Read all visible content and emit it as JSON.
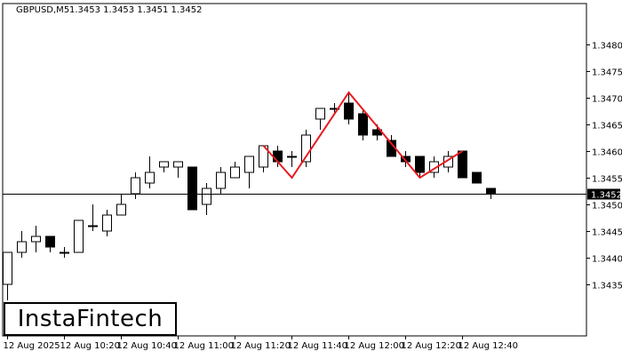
{
  "header": {
    "symbol": "GBPUSD,M5",
    "ohlc": "1.3453 1.3453 1.3451 1.3452"
  },
  "logo": {
    "text": "InstaFintech"
  },
  "current_price_label": "1.3452",
  "colors": {
    "pattern_line": "#e8191e",
    "bull_candle": "#ffffff",
    "bear_candle": "#000000",
    "price_line": "#000000"
  },
  "chart_data": {
    "type": "candlestick",
    "title": "GBPUSD,M5",
    "ylim": [
      1.343,
      1.348
    ],
    "y_ticks": [
      "1.3435",
      "1.3440",
      "1.3445",
      "1.3450",
      "1.3455",
      "1.3460",
      "1.3465",
      "1.3470",
      "1.3475",
      "1.3480"
    ],
    "x_labels": [
      {
        "index": 0,
        "label": "12 Aug 2025"
      },
      {
        "index": 4,
        "label": "12 Aug 10:20"
      },
      {
        "index": 8,
        "label": "12 Aug 10:40"
      },
      {
        "index": 12,
        "label": "12 Aug 11:00"
      },
      {
        "index": 16,
        "label": "12 Aug 11:20"
      },
      {
        "index": 20,
        "label": "12 Aug 11:40"
      },
      {
        "index": 24,
        "label": "12 Aug 12:00"
      },
      {
        "index": 28,
        "label": "12 Aug 12:20"
      },
      {
        "index": 32,
        "label": "12 Aug 12:40"
      }
    ],
    "current_price": 1.3452,
    "candles": [
      {
        "o": 1.3435,
        "h": 1.3441,
        "l": 1.3432,
        "c": 1.3441
      },
      {
        "o": 1.3441,
        "h": 1.3445,
        "l": 1.344,
        "c": 1.3443
      },
      {
        "o": 1.3443,
        "h": 1.3446,
        "l": 1.3441,
        "c": 1.3444
      },
      {
        "o": 1.3444,
        "h": 1.3444,
        "l": 1.3441,
        "c": 1.3442
      },
      {
        "o": 1.3441,
        "h": 1.3442,
        "l": 1.344,
        "c": 1.3441
      },
      {
        "o": 1.3441,
        "h": 1.3447,
        "l": 1.3441,
        "c": 1.3447
      },
      {
        "o": 1.3446,
        "h": 1.345,
        "l": 1.3445,
        "c": 1.3446
      },
      {
        "o": 1.3445,
        "h": 1.3449,
        "l": 1.3444,
        "c": 1.3448
      },
      {
        "o": 1.3448,
        "h": 1.3452,
        "l": 1.3448,
        "c": 1.345
      },
      {
        "o": 1.3452,
        "h": 1.3456,
        "l": 1.3451,
        "c": 1.3455
      },
      {
        "o": 1.3454,
        "h": 1.3459,
        "l": 1.3453,
        "c": 1.3456
      },
      {
        "o": 1.3457,
        "h": 1.3458,
        "l": 1.3456,
        "c": 1.3458
      },
      {
        "o": 1.3457,
        "h": 1.3458,
        "l": 1.3455,
        "c": 1.3458
      },
      {
        "o": 1.3457,
        "h": 1.3457,
        "l": 1.3449,
        "c": 1.3449
      },
      {
        "o": 1.345,
        "h": 1.3454,
        "l": 1.3448,
        "c": 1.3453
      },
      {
        "o": 1.3453,
        "h": 1.3457,
        "l": 1.3452,
        "c": 1.3456
      },
      {
        "o": 1.3455,
        "h": 1.3458,
        "l": 1.3455,
        "c": 1.3457
      },
      {
        "o": 1.3456,
        "h": 1.3459,
        "l": 1.3453,
        "c": 1.3459
      },
      {
        "o": 1.3457,
        "h": 1.3461,
        "l": 1.3456,
        "c": 1.3461
      },
      {
        "o": 1.346,
        "h": 1.3461,
        "l": 1.3457,
        "c": 1.3458
      },
      {
        "o": 1.3459,
        "h": 1.346,
        "l": 1.3457,
        "c": 1.3459
      },
      {
        "o": 1.3458,
        "h": 1.3464,
        "l": 1.3457,
        "c": 1.3463
      },
      {
        "o": 1.3466,
        "h": 1.3468,
        "l": 1.3464,
        "c": 1.3468
      },
      {
        "o": 1.3468,
        "h": 1.3469,
        "l": 1.3467,
        "c": 1.3468
      },
      {
        "o": 1.3469,
        "h": 1.3471,
        "l": 1.3465,
        "c": 1.3466
      },
      {
        "o": 1.3467,
        "h": 1.3468,
        "l": 1.3462,
        "c": 1.3463
      },
      {
        "o": 1.3464,
        "h": 1.3465,
        "l": 1.3462,
        "c": 1.3463
      },
      {
        "o": 1.3462,
        "h": 1.3463,
        "l": 1.3459,
        "c": 1.3459
      },
      {
        "o": 1.3459,
        "h": 1.346,
        "l": 1.3457,
        "c": 1.3458
      },
      {
        "o": 1.3459,
        "h": 1.3459,
        "l": 1.3455,
        "c": 1.3456
      },
      {
        "o": 1.3456,
        "h": 1.3459,
        "l": 1.3455,
        "c": 1.3458
      },
      {
        "o": 1.3457,
        "h": 1.346,
        "l": 1.3456,
        "c": 1.3459
      },
      {
        "o": 1.346,
        "h": 1.346,
        "l": 1.3455,
        "c": 1.3455
      },
      {
        "o": 1.3456,
        "h": 1.3456,
        "l": 1.3454,
        "c": 1.3454
      },
      {
        "o": 1.3453,
        "h": 1.3453,
        "l": 1.3451,
        "c": 1.3452
      }
    ],
    "pattern": {
      "name": "Head and Shoulders",
      "points": [
        {
          "index": 18,
          "price": 1.3461
        },
        {
          "index": 20,
          "price": 1.3455
        },
        {
          "index": 24,
          "price": 1.3471
        },
        {
          "index": 29,
          "price": 1.3455
        },
        {
          "index": 32,
          "price": 1.346
        }
      ]
    }
  }
}
